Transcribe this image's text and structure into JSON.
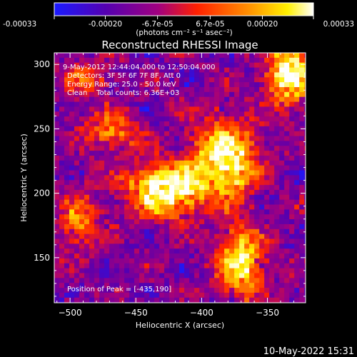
{
  "colorbar": {
    "tick_labels": [
      "-0.00033",
      "-0.00020",
      "-6.7e-05",
      "6.7e-05",
      "0.00020",
      "0.00033"
    ],
    "tick_values": [
      -0.00033,
      -0.0002,
      -6.7e-05,
      6.7e-05,
      0.0002,
      0.00033
    ],
    "range": [
      -0.00033,
      0.00033
    ],
    "units": "(photons cm⁻² s⁻¹ asec⁻²)",
    "colormap": [
      "#1a1aff",
      "#5500b0",
      "#a00080",
      "#ff2000",
      "#ff9000",
      "#fff000",
      "#ffffff"
    ]
  },
  "chart_data": {
    "type": "heatmap",
    "title": "Reconstructed RHESSI Image",
    "xlabel": "Heliocentric X (arcsec)",
    "ylabel": "Heliocentric Y (arcsec)",
    "xlim": [
      -512,
      -321
    ],
    "ylim": [
      115,
      309
    ],
    "xticks": [
      -500,
      -450,
      -400,
      -350
    ],
    "yticks": [
      150,
      200,
      250,
      300
    ],
    "xtick_labels": [
      "−500",
      "−450",
      "−400",
      "−350"
    ],
    "ytick_labels": [
      "150",
      "200",
      "250",
      "300"
    ],
    "annotations": [
      "9-May-2012 12:44:04.000 to 12:50:04.000",
      "Detectors: 3F 5F 6F 7F 8F, Att 0",
      "Energy Range: 25.0 - 50.0 keV",
      "Clean    Total counts: 6.36E+03"
    ],
    "peak_label": "Position of Peak = [-435,190]",
    "peak": [
      -435,
      190
    ],
    "source_regions": [
      {
        "x": -430,
        "y": 205,
        "sigma_x": 18,
        "sigma_y": 14,
        "amp": 0.9
      },
      {
        "x": -385,
        "y": 228,
        "sigma_x": 16,
        "sigma_y": 20,
        "amp": 0.85
      },
      {
        "x": -372,
        "y": 148,
        "sigma_x": 12,
        "sigma_y": 18,
        "amp": 0.7
      },
      {
        "x": -335,
        "y": 295,
        "sigma_x": 12,
        "sigma_y": 18,
        "amp": 0.75
      },
      {
        "x": -470,
        "y": 250,
        "sigma_x": 14,
        "sigma_y": 10,
        "amp": 0.45
      },
      {
        "x": -495,
        "y": 180,
        "sigma_x": 10,
        "sigma_y": 16,
        "amp": 0.4
      },
      {
        "x": -490,
        "y": 290,
        "sigma_x": 12,
        "sigma_y": 8,
        "amp": 0.35
      }
    ]
  },
  "footer": {
    "timestamp": "10-May-2022 15:31"
  }
}
